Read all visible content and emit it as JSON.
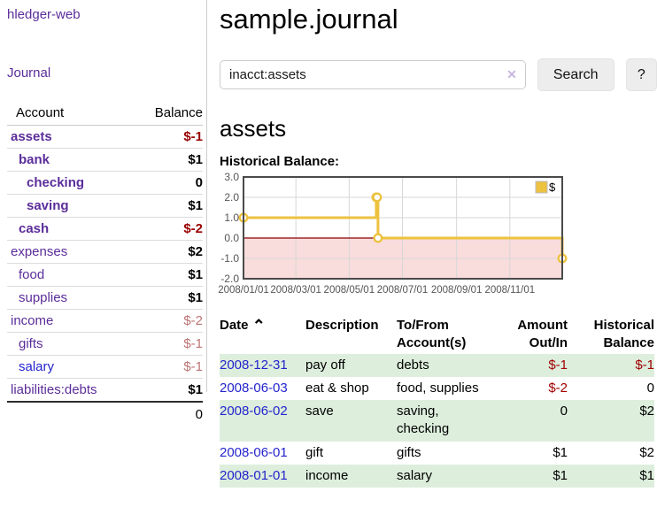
{
  "app": {
    "title": "hledger-web"
  },
  "colors": {
    "link_purple": "#5b2d9a",
    "link_blue": "#2424cc",
    "negative_strong": "#990000",
    "negative_soft": "#bd7474",
    "row_stripe_green": "#ddeedd",
    "button_bg": "#ededed"
  },
  "icons": {
    "sort_asc": "⌃",
    "clear_search": "✕"
  },
  "sidebar": {
    "journal_label": "Journal",
    "headers": {
      "account": "Account",
      "balance": "Balance"
    },
    "accounts": [
      {
        "name": "assets",
        "level": 1,
        "balance": "$-1",
        "in_query": true,
        "visited": true
      },
      {
        "name": "bank",
        "level": 2,
        "balance": "$1",
        "in_query": true,
        "visited": true
      },
      {
        "name": "checking",
        "level": 3,
        "balance": "0",
        "in_query": true,
        "visited": true
      },
      {
        "name": "saving",
        "level": 3,
        "balance": "$1",
        "in_query": true,
        "visited": true
      },
      {
        "name": "cash",
        "level": 2,
        "balance": "$-2",
        "in_query": true,
        "visited": true
      },
      {
        "name": "expenses",
        "level": 1,
        "balance": "$2",
        "in_query": false,
        "visited": true
      },
      {
        "name": "food",
        "level": 2,
        "balance": "$1",
        "in_query": false,
        "visited": true
      },
      {
        "name": "supplies",
        "level": 2,
        "balance": "$1",
        "in_query": false,
        "visited": true
      },
      {
        "name": "income",
        "level": 1,
        "balance": "$-2",
        "in_query": false,
        "visited": true
      },
      {
        "name": "gifts",
        "level": 2,
        "balance": "$-1",
        "in_query": false,
        "visited": true
      },
      {
        "name": "salary",
        "level": 2,
        "balance": "$-1",
        "in_query": false,
        "visited": false
      },
      {
        "name": "liabilities:debts",
        "level": 1,
        "balance": "$1",
        "in_query": false,
        "visited": true
      }
    ],
    "total": "0"
  },
  "main": {
    "title": "sample.journal",
    "search": {
      "value": "inacct:assets",
      "button_label": "Search",
      "help_label": "?"
    },
    "account_heading": "assets"
  },
  "chart_data": {
    "type": "line",
    "step": true,
    "title": "Historical Balance:",
    "series": [
      {
        "name": "$",
        "color": "#edc240",
        "points": [
          [
            "2008/01/01",
            1
          ],
          [
            "2008/06/01",
            2
          ],
          [
            "2008/06/02",
            2
          ],
          [
            "2008/06/03",
            0
          ],
          [
            "2008/12/31",
            -1
          ]
        ]
      }
    ],
    "x_range": [
      "2008/01/01",
      "2008/12/31"
    ],
    "x_ticks": [
      "2008/01/01",
      "2008/03/01",
      "2008/05/01",
      "2008/07/01",
      "2008/09/01",
      "2008/11/01"
    ],
    "y_ticks": [
      3.0,
      2.0,
      1.0,
      0.0,
      -1.0,
      -2.0
    ],
    "ylim": [
      -2.0,
      3.0
    ],
    "grid": true,
    "legend_position": "top-right",
    "negative_region_color": "#f9dcdc",
    "zero_line_color": "#8b0000",
    "grid_color": "#d7d7d7",
    "border_color": "#4a4a4a",
    "tick_label_color": "#555555"
  },
  "register": {
    "headers": {
      "date": "Date",
      "description": "Description",
      "accounts": "To/From Account(s)",
      "amount": "Amount Out/In",
      "balance": "Historical Balance"
    },
    "rows": [
      {
        "date": "2008-12-31",
        "description": "pay off",
        "accounts": "debts",
        "amount": "$-1",
        "balance": "$-1"
      },
      {
        "date": "2008-06-03",
        "description": "eat & shop",
        "accounts": "food, supplies",
        "amount": "$-2",
        "balance": "0"
      },
      {
        "date": "2008-06-02",
        "description": "save",
        "accounts": "saving, checking",
        "amount": "0",
        "balance": "$2"
      },
      {
        "date": "2008-06-01",
        "description": "gift",
        "accounts": "gifts",
        "amount": "$1",
        "balance": "$2"
      },
      {
        "date": "2008-01-01",
        "description": "income",
        "accounts": "salary",
        "amount": "$1",
        "balance": "$1"
      }
    ]
  }
}
